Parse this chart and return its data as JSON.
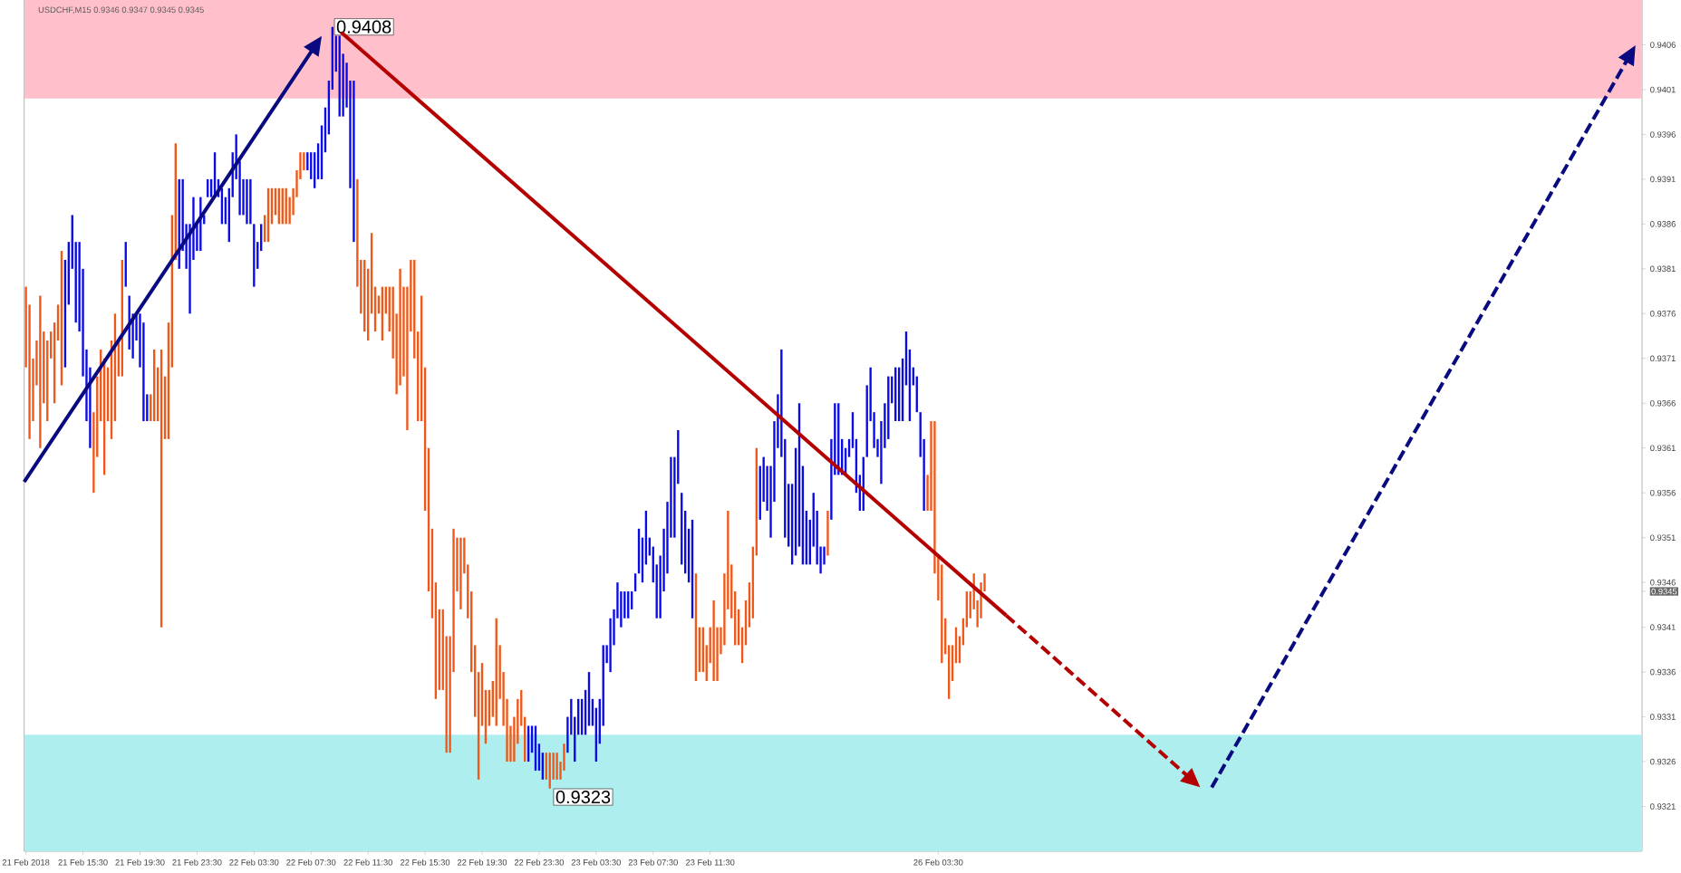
{
  "chart_data": {
    "type": "bar",
    "base": [
      0.937,
      0.9362,
      0.9364,
      0.9368,
      0.9361,
      0.9366,
      0.9364,
      0.9371,
      0.9366,
      0.9373,
      0.9368,
      0.937,
      0.9377,
      0.9381,
      0.9375,
      0.9374,
      0.9369,
      0.9364,
      0.9361,
      0.9356,
      0.936,
      0.9364,
      0.9358,
      0.9364,
      0.9362,
      0.9364,
      0.9369,
      0.9369,
      0.9379,
      0.9372,
      0.9371,
      0.9373,
      0.937,
      0.9364,
      0.9364,
      0.9364,
      0.9364,
      0.9364,
      0.9341,
      0.9362,
      0.9362,
      0.937,
      0.9382,
      0.9381,
      0.9383,
      0.9381,
      0.9376,
      0.9382,
      0.9383,
      0.9383,
      0.9386,
      0.9389,
      0.9389,
      0.9389,
      0.9389,
      0.9386,
      0.9386,
      0.9384,
      0.9389,
      0.9391,
      0.9387,
      0.9387,
      0.9386,
      0.9386,
      0.9379,
      0.9381,
      0.9383,
      0.9384,
      0.9384,
      0.9386,
      0.9387,
      0.9386,
      0.9386,
      0.9386,
      0.9386,
      0.9387,
      0.9389,
      0.9391,
      0.9392,
      0.9392,
      0.9391,
      0.939,
      0.9391,
      0.9391,
      0.9394,
      0.9396,
      0.9401,
      0.9403,
      0.9398,
      0.9398,
      0.9399,
      0.939,
      0.9384,
      0.9379,
      0.9376,
      0.9374,
      0.9373,
      0.9376,
      0.9374,
      0.9376,
      0.9373,
      0.9376,
      0.9374,
      0.9371,
      0.9367,
      0.9368,
      0.9369,
      0.9363,
      0.9374,
      0.9371,
      0.9364,
      0.9364,
      0.9354,
      0.9345,
      0.9342,
      0.9333,
      0.9334,
      0.9334,
      0.9327,
      0.9327,
      0.9336,
      0.9345,
      0.9343,
      0.9347,
      0.9342,
      0.9336,
      0.9331,
      0.9324,
      0.933,
      0.9328,
      0.933,
      0.9331,
      0.933,
      0.9333,
      0.933,
      0.9326,
      0.9326,
      0.9326,
      0.9328,
      0.933,
      0.9326,
      0.9326,
      0.9327,
      0.9325,
      0.9325,
      0.9324,
      0.9324,
      0.9323,
      0.9324,
      0.9324,
      0.9324,
      0.9325,
      0.9327,
      0.9329,
      0.9326,
      0.9329,
      0.9329,
      0.9329,
      0.933,
      0.933,
      0.9326,
      0.9328,
      0.933,
      0.9337,
      0.9336,
      0.9339,
      0.9342,
      0.9341,
      0.9342,
      0.9342,
      0.9343,
      0.9345,
      0.9347,
      0.9346,
      0.9348,
      0.9349,
      0.9346,
      0.9342,
      0.9342,
      0.9345,
      0.9347,
      0.9351,
      0.9351,
      0.9357,
      0.9348,
      0.9347,
      0.9346,
      0.9342,
      0.9335,
      0.9336,
      0.9336,
      0.9335,
      0.9337,
      0.9335,
      0.9335,
      0.9338,
      0.9339,
      0.9343,
      0.9342,
      0.9339,
      0.9339,
      0.9337,
      0.9339,
      0.9341,
      0.9342,
      0.9349,
      0.9353,
      0.9355,
      0.9354,
      0.9351,
      0.9355,
      0.9361,
      0.936,
      0.9351,
      0.935,
      0.9348,
      0.9349,
      0.935,
      0.9348,
      0.9348,
      0.9348,
      0.935,
      0.9348,
      0.9347,
      0.9348,
      0.9349,
      0.9353,
      0.9358,
      0.9358,
      0.9358,
      0.9358,
      0.936,
      0.9361,
      0.9356,
      0.9354,
      0.9354,
      0.936,
      0.9364,
      0.9361,
      0.936,
      0.9357,
      0.9361,
      0.9362,
      0.9366,
      0.9364,
      0.9364,
      0.9364,
      0.9368,
      0.9364,
      0.9368,
      0.9365,
      0.936,
      0.9354,
      0.9354,
      0.9354,
      0.9347,
      0.9344,
      0.9337,
      0.9338,
      0.9333,
      0.9335,
      0.9337,
      0.9337,
      0.9339,
      0.9341,
      0.9342,
      0.9343,
      0.9341,
      0.9342,
      0.9345,
      null,
      null,
      null,
      null,
      null,
      null,
      null,
      null,
      null,
      null,
      null,
      null,
      null,
      null,
      null,
      null,
      null,
      null,
      null,
      null,
      null,
      null,
      null,
      null,
      null,
      null,
      null,
      null,
      null,
      null,
      null,
      null,
      null,
      null,
      null,
      null,
      null,
      null,
      null,
      null,
      null,
      null,
      null,
      null,
      null,
      null,
      null,
      null,
      null,
      null,
      null,
      null,
      null,
      null,
      null,
      null,
      null,
      null,
      null,
      null,
      null,
      null,
      null,
      null,
      null,
      null,
      null,
      null,
      null,
      null,
      null,
      null,
      null,
      null,
      null,
      null,
      null,
      null,
      null,
      null,
      null,
      null,
      null,
      null,
      null,
      null,
      null,
      null,
      null,
      null,
      null,
      null,
      null,
      null,
      null,
      null,
      null,
      null,
      null,
      null,
      null,
      null,
      null,
      null,
      null,
      null,
      null,
      null,
      null,
      null,
      null,
      null,
      null,
      null,
      null,
      null,
      null,
      null,
      null,
      null,
      null,
      null,
      null,
      null,
      null,
      null,
      null,
      null,
      null,
      null,
      null,
      null,
      null,
      null,
      null,
      null,
      null,
      null,
      null,
      null,
      null,
      null,
      null,
      null,
      null,
      null,
      null,
      null,
      null,
      null,
      null,
      null,
      null,
      null,
      null,
      null,
      null,
      null,
      null,
      null,
      null,
      null,
      null,
      null,
      null,
      null,
      null,
      null,
      null,
      null,
      null,
      null,
      null,
      null,
      null,
      null,
      null,
      null,
      null,
      null,
      null,
      null,
      null,
      null
    ],
    "values": [
      0.0009,
      0.0015,
      0.0007,
      0.0005,
      0.0017,
      0.0008,
      0.0009,
      0.0003,
      0.0009,
      0.0004,
      0.0015,
      0.0012,
      0.0007,
      0.0006,
      0.0009,
      0.001,
      0.0012,
      0.0008,
      0.0009,
      0.0009,
      0.0009,
      0.0008,
      0.0013,
      0.0006,
      0.0011,
      0.0012,
      0.0004,
      0.0013,
      0.0005,
      0.0006,
      0.0005,
      0.0003,
      0.0006,
      0.0011,
      0.0003,
      0.0003,
      0.0008,
      0.0006,
      0.0031,
      0.0007,
      0.0013,
      0.0017,
      0.0013,
      0.001,
      0.0008,
      0.0005,
      0.001,
      0.0007,
      0.0003,
      0.0006,
      0.0001,
      0.0002,
      0.0002,
      0.0005,
      0.0002,
      0.0004,
      0.0003,
      0.0006,
      0.0005,
      0.0005,
      0.0006,
      0.0004,
      0.0005,
      0.0005,
      0.0007,
      0.0003,
      0.0003,
      0.0003,
      0.0006,
      0.0004,
      0.0003,
      0.0004,
      0.0004,
      0.0004,
      0.0003,
      0.0003,
      0.0003,
      0.0003,
      0.0002,
      0.0002,
      0.0003,
      0.0004,
      0.0004,
      0.0006,
      0.0005,
      0.0006,
      0.0007,
      0.0004,
      0.0009,
      0.0007,
      0.0005,
      0.0012,
      0.0018,
      0.0012,
      0.0006,
      0.0008,
      0.0008,
      0.0009,
      0.0005,
      0.0002,
      0.0006,
      0.0003,
      0.0005,
      0.0008,
      0.0009,
      0.0013,
      0.001,
      0.0016,
      0.0008,
      0.0011,
      0.001,
      0.0014,
      0.0016,
      0.0016,
      0.001,
      0.0013,
      0.0009,
      0.0009,
      0.0013,
      0.0013,
      0.0016,
      0.0006,
      0.0008,
      0.0004,
      0.0006,
      0.0009,
      0.0008,
      0.0012,
      0.0007,
      0.0006,
      0.0004,
      0.0004,
      0.0012,
      0.0006,
      0.0006,
      0.0007,
      0.0004,
      0.0005,
      0.0005,
      0.0004,
      0.0005,
      0.0004,
      0.0003,
      0.0005,
      0.0003,
      0.0003,
      0.0003,
      0.0004,
      0.0003,
      0.0003,
      0.0002,
      0.0003,
      0.0004,
      0.0004,
      0.0005,
      0.0004,
      0.0004,
      0.0005,
      0.0006,
      0.0003,
      0.0006,
      0.0005,
      0.0009,
      0.0002,
      0.0006,
      0.0004,
      0.0004,
      0.0004,
      0.0003,
      0.0003,
      0.0002,
      0.0002,
      0.0005,
      0.0005,
      0.0006,
      0.0002,
      0.0004,
      0.0006,
      0.0007,
      0.0007,
      0.0008,
      0.0009,
      0.0009,
      0.0006,
      0.0008,
      0.0007,
      0.0006,
      0.0011,
      0.0012,
      0.0005,
      0.0005,
      0.0004,
      0.0004,
      0.0009,
      0.0006,
      0.0003,
      0.0008,
      0.0011,
      0.0006,
      0.0006,
      0.0004,
      0.0004,
      0.0005,
      0.0005,
      0.0008,
      0.0012,
      0.0006,
      0.0005,
      0.0005,
      0.0008,
      0.0009,
      0.0006,
      0.0012,
      0.0011,
      0.0007,
      0.0009,
      0.0012,
      0.0016,
      0.0011,
      0.0006,
      0.0005,
      0.0006,
      0.0006,
      0.0003,
      0.0002,
      0.0005,
      0.0009,
      0.0008,
      0.0008,
      0.0004,
      0.0003,
      0.0002,
      0.0004,
      0.0006,
      0.0004,
      0.0006,
      0.0008,
      0.0006,
      0.0004,
      0.0002,
      0.0007,
      0.0005,
      0.0007,
      0.0003,
      0.0006,
      0.0006,
      0.0007,
      0.0006,
      0.0008,
      0.0002,
      0.0004,
      0.0005,
      0.0008,
      0.0004,
      0.001,
      0.0017,
      0.0005,
      0.0011,
      0.0004,
      0.0006,
      0.0004,
      0.0004,
      0.0003,
      0.0003,
      0.0004,
      0.0003,
      0.0004,
      0.0003,
      0.0004,
      0.0002,
      null,
      null,
      null,
      null,
      null,
      null,
      null,
      null,
      null,
      null,
      null,
      null,
      null,
      null,
      null,
      null,
      null,
      null,
      null,
      null,
      null,
      null,
      null,
      null,
      null,
      null,
      null,
      null,
      null,
      null,
      null,
      null,
      null,
      null,
      null,
      null,
      null,
      null,
      null,
      null,
      null,
      null,
      null,
      null,
      null,
      null,
      null,
      null,
      null,
      null,
      null,
      null,
      null,
      null,
      null,
      null,
      null,
      null,
      null,
      null,
      null,
      null,
      null,
      null,
      null,
      null,
      null,
      null,
      null,
      null,
      null,
      null,
      null,
      null,
      null,
      null,
      null,
      null,
      null,
      null,
      null,
      null,
      null,
      null,
      null,
      null,
      null,
      null,
      null,
      null,
      null,
      null,
      null,
      null,
      null,
      null,
      null,
      null,
      null,
      null,
      null,
      null,
      null,
      null,
      null,
      null,
      null,
      null,
      null,
      null,
      null,
      null,
      null,
      null,
      null,
      null,
      null,
      null,
      null,
      null,
      null,
      null,
      null,
      null,
      null,
      null,
      null,
      null,
      null,
      null,
      null,
      null,
      null,
      null,
      null,
      null,
      null,
      null,
      null,
      null,
      null,
      null,
      null,
      null,
      null,
      null,
      null,
      null,
      null,
      null,
      null,
      null,
      null,
      null,
      null,
      null,
      null,
      null,
      null,
      null,
      null,
      null,
      null,
      null,
      null,
      null,
      null,
      null,
      null,
      null,
      null,
      null,
      null,
      null,
      null,
      null,
      null,
      null,
      null,
      null,
      null,
      null,
      null,
      null
    ],
    "title": "USDCHF,M15  0.9346 0.9347 0.9345 0.9345",
    "categories": [
      "21 Feb 2018",
      null,
      null,
      null,
      null,
      null,
      null,
      null,
      null,
      null,
      null,
      null,
      null,
      null,
      null,
      null,
      "21 Feb 15:30",
      null,
      null,
      null,
      null,
      null,
      null,
      null,
      null,
      null,
      null,
      null,
      null,
      null,
      null,
      null,
      "21 Feb 19:30",
      null,
      null,
      null,
      null,
      null,
      null,
      null,
      null,
      null,
      null,
      null,
      null,
      null,
      null,
      null,
      "21 Feb 23:30",
      null,
      null,
      null,
      null,
      null,
      null,
      null,
      null,
      null,
      null,
      null,
      null,
      null,
      null,
      null,
      "22 Feb 03:30",
      null,
      null,
      null,
      null,
      null,
      null,
      null,
      null,
      null,
      null,
      null,
      null,
      null,
      null,
      null,
      "22 Feb 07:30",
      null,
      null,
      null,
      null,
      null,
      null,
      null,
      null,
      null,
      null,
      null,
      null,
      null,
      null,
      null,
      "22 Feb 11:30",
      null,
      null,
      null,
      null,
      null,
      null,
      null,
      null,
      null,
      null,
      null,
      null,
      null,
      null,
      null,
      "22 Feb 15:30",
      null,
      null,
      null,
      null,
      null,
      null,
      null,
      null,
      null,
      null,
      null,
      null,
      null,
      null,
      null,
      "22 Feb 19:30",
      null,
      null,
      null,
      null,
      null,
      null,
      null,
      null,
      null,
      null,
      null,
      null,
      null,
      null,
      null,
      "22 Feb 23:30",
      null,
      null,
      null,
      null,
      null,
      null,
      null,
      null,
      null,
      null,
      null,
      null,
      null,
      null,
      null,
      "23 Feb 03:30",
      null,
      null,
      null,
      null,
      null,
      null,
      null,
      null,
      null,
      null,
      null,
      null,
      null,
      null,
      null,
      "23 Feb 07:30",
      null,
      null,
      null,
      null,
      null,
      null,
      null,
      null,
      null,
      null,
      null,
      null,
      null,
      null,
      null,
      "23 Feb 11:30",
      null,
      null,
      null,
      null,
      null,
      null,
      null,
      null,
      null,
      null,
      null,
      null,
      null,
      null,
      null,
      null,
      null,
      null,
      null,
      null,
      null,
      null,
      null,
      null,
      null,
      null,
      null,
      null,
      null,
      null,
      null,
      null,
      null,
      null,
      null,
      null,
      null,
      null,
      null,
      null,
      null,
      null,
      null,
      null,
      null,
      null,
      null,
      null,
      null,
      null,
      null,
      null,
      null,
      null,
      null,
      null,
      null,
      null,
      null,
      null,
      null,
      null,
      null,
      "26 Feb 03:30",
      null,
      null,
      null,
      null,
      null,
      null,
      null,
      null,
      null,
      null,
      null,
      null,
      null,
      null,
      null,
      null,
      null,
      null,
      null,
      null,
      null,
      null,
      null,
      null,
      null,
      null,
      null,
      null,
      null,
      null,
      null,
      null,
      null,
      null,
      null,
      null,
      null,
      null,
      null,
      null,
      null,
      null,
      null,
      null,
      null,
      null,
      null,
      null,
      null,
      null,
      null,
      null,
      null,
      null,
      null,
      null,
      null,
      null,
      null,
      null,
      null,
      null,
      null,
      null,
      null,
      null,
      null,
      null,
      null,
      null,
      null,
      null,
      null,
      null,
      null,
      null,
      null,
      null,
      null,
      null,
      null,
      null,
      null,
      null,
      null,
      null,
      null,
      null,
      null,
      null,
      null,
      null,
      null,
      null,
      null,
      null,
      null,
      null,
      null,
      null,
      null,
      null,
      null,
      null,
      null,
      null,
      null,
      null,
      null,
      null,
      null,
      null,
      null,
      null,
      null,
      null,
      null,
      null,
      null,
      null,
      null,
      null,
      null,
      null,
      null,
      null,
      null,
      null,
      null,
      null,
      null,
      null,
      null,
      null,
      null,
      null,
      null,
      null,
      null,
      null,
      null,
      null,
      null,
      null,
      null,
      null,
      null,
      null,
      null,
      null,
      null,
      null,
      null,
      null,
      null,
      null,
      null,
      null,
      null,
      null,
      null,
      null,
      null,
      null,
      null,
      null,
      null,
      null,
      null,
      null,
      null,
      null,
      null,
      null,
      null,
      null,
      null,
      null,
      null,
      null,
      null,
      null,
      null,
      null,
      null,
      null,
      null,
      null,
      null,
      null,
      null,
      null,
      null,
      null,
      null,
      null,
      null
    ],
    "colors": [
      "#f0581a",
      "#f0581a",
      "#f0581a",
      "#f0581a",
      "#f0581a",
      "#f0581a",
      "#f0581a",
      "#f0581a",
      "#f0581a",
      "#f0581a",
      "#f0581a",
      "#0a0ae6",
      "#0a0ae6",
      "#0a0ae6",
      "#0a0ae6",
      "#0a0ae6",
      "#0a0ae6",
      "#0a0ae6",
      "#0a0ae6",
      "#f0581a",
      "#f0581a",
      "#f0581a",
      "#f0581a",
      "#f0581a",
      "#f0581a",
      "#f0581a",
      "#f0581a",
      "#f0581a",
      "#0a0ae6",
      "#0a0ae6",
      "#0a0ae6",
      "#0a0ae6",
      "#0a0ae6",
      "#0a0ae6",
      "#0a0ae6",
      "#f0581a",
      "#f0581a",
      "#f0581a",
      "#f0581a",
      "#f0581a",
      "#f0581a",
      "#f0581a",
      "#f0581a",
      "#0a0ae6",
      "#0a0ae6",
      "#0a0ae6",
      "#0a0ae6",
      "#0a0ae6",
      "#0a0ae6",
      "#0a0ae6",
      "#0a0ae6",
      "#0a0ae6",
      "#0a0ae6",
      "#0a0ae6",
      "#0a0ae6",
      "#0a0ae6",
      "#0a0ae6",
      "#0a0ae6",
      "#0a0ae6",
      "#0a0ae6",
      "#0a0ae6",
      "#0a0ae6",
      "#0a0ae6",
      "#0a0ae6",
      "#0a0ae6",
      "#0a0ae6",
      "#0a0ae6",
      "#f0581a",
      "#f0581a",
      "#f0581a",
      "#f0581a",
      "#f0581a",
      "#f0581a",
      "#f0581a",
      "#f0581a",
      "#f0581a",
      "#f0581a",
      "#f0581a",
      "#f0581a",
      "#0a0ae6",
      "#0a0ae6",
      "#0a0ae6",
      "#0a0ae6",
      "#0a0ae6",
      "#0a0ae6",
      "#0a0ae6",
      "#0a0ae6",
      "#0a0ae6",
      "#0a0ae6",
      "#0a0ae6",
      "#0a0ae6",
      "#0a0ae6",
      "#0a0ae6",
      "#f0581a",
      "#f0581a",
      "#f0581a",
      "#f0581a",
      "#f0581a",
      "#f0581a",
      "#f0581a",
      "#f0581a",
      "#f0581a",
      "#f0581a",
      "#f0581a",
      "#f0581a",
      "#f0581a",
      "#f0581a",
      "#f0581a",
      "#f0581a",
      "#f0581a",
      "#f0581a",
      "#f0581a",
      "#f0581a",
      "#f0581a",
      "#f0581a",
      "#f0581a",
      "#f0581a",
      "#f0581a",
      "#f0581a",
      "#f0581a",
      "#f0581a",
      "#f0581a",
      "#f0581a",
      "#f0581a",
      "#f0581a",
      "#f0581a",
      "#f0581a",
      "#f0581a",
      "#f0581a",
      "#f0581a",
      "#f0581a",
      "#f0581a",
      "#f0581a",
      "#f0581a",
      "#f0581a",
      "#f0581a",
      "#f0581a",
      "#f0581a",
      "#f0581a",
      "#f0581a",
      "#f0581a",
      "#0a0ae6",
      "#0a0ae6",
      "#0a0ae6",
      "#0a0ae6",
      "#0a0ae6",
      "#f0581a",
      "#f0581a",
      "#f0581a",
      "#f0581a",
      "#f0581a",
      "#f0581a",
      "#0a0ae6",
      "#0a0ae6",
      "#0a0ae6",
      "#0a0ae6",
      "#0a0ae6",
      "#0a0ae6",
      "#0a0ae6",
      "#0a0ae6",
      "#0a0ae6",
      "#0a0ae6",
      "#0a0ae6",
      "#0a0ae6",
      "#0a0ae6",
      "#0a0ae6",
      "#0a0ae6",
      "#0a0ae6",
      "#0a0ae6",
      "#0a0ae6",
      "#0a0ae6",
      "#0a0ae6",
      "#0a0ae6",
      "#0a0ae6",
      "#0a0ae6",
      "#0a0ae6",
      "#0a0ae6",
      "#0a0ae6",
      "#0a0ae6",
      "#0a0ae6",
      "#0a0ae6",
      "#0a0ae6",
      "#0a0ae6",
      "#0a0ae6",
      "#0a0ae6",
      "#0a0ae6",
      "#0a0ae6",
      "#0a0ae6",
      "#f0581a",
      "#f0581a",
      "#f0581a",
      "#f0581a",
      "#f0581a",
      "#f0581a",
      "#f0581a",
      "#f0581a",
      "#f0581a",
      "#f0581a",
      "#f0581a",
      "#f0581a",
      "#f0581a",
      "#f0581a",
      "#f0581a",
      "#f0581a",
      "#f0581a",
      "#f0581a",
      "#0a0ae6",
      "#0a0ae6",
      "#0a0ae6",
      "#0a0ae6",
      "#0a0ae6",
      "#0a0ae6",
      "#0a0ae6",
      "#0a0ae6",
      "#0a0ae6",
      "#0a0ae6",
      "#0a0ae6",
      "#0a0ae6",
      "#0a0ae6",
      "#0a0ae6",
      "#0a0ae6",
      "#0a0ae6",
      "#0a0ae6",
      "#0a0ae6",
      "#0a0ae6",
      "#f0581a",
      "#0a0ae6",
      "#0a0ae6",
      "#0a0ae6",
      "#0a0ae6",
      "#0a0ae6",
      "#0a0ae6",
      "#0a0ae6",
      "#0a0ae6",
      "#0a0ae6",
      "#0a0ae6",
      "#0a0ae6",
      "#0a0ae6",
      "#0a0ae6",
      "#0a0ae6",
      "#0a0ae6",
      "#0a0ae6",
      "#0a0ae6",
      "#0a0ae6",
      "#0a0ae6",
      "#0a0ae6",
      "#0a0ae6",
      "#0a0ae6",
      "#0a0ae6",
      "#0a0ae6",
      "#0a0ae6",
      "#0a0ae6",
      "#0a0ae6",
      "#f0581a",
      "#f0581a",
      "#f0581a",
      "#f0581a",
      "#f0581a",
      "#f0581a",
      "#f0581a",
      "#f0581a",
      "#f0581a",
      "#f0581a",
      "#f0581a",
      "#f0581a",
      "#f0581a",
      "#f0581a",
      "#f0581a",
      "#f0581a",
      "#f0581a",
      null,
      null,
      null,
      null,
      null,
      null,
      null,
      null,
      null,
      null,
      null,
      null,
      null,
      null,
      null,
      null,
      null,
      null,
      null,
      null,
      null,
      null,
      null,
      null,
      null,
      null,
      null,
      null,
      null,
      null,
      null,
      null,
      null,
      null,
      null,
      null,
      null,
      null,
      null,
      null,
      null,
      null,
      null,
      null,
      null,
      null,
      null,
      null,
      null,
      null,
      null,
      null,
      null,
      null,
      null,
      null,
      null,
      null,
      null,
      null,
      null,
      null,
      null,
      null,
      null,
      null,
      null,
      null,
      null,
      null,
      null,
      null,
      null,
      null,
      null,
      null,
      null,
      null,
      null,
      null,
      null,
      null,
      null,
      null,
      null,
      null,
      null,
      null,
      null,
      null,
      null,
      null,
      null,
      null,
      null,
      null,
      null,
      null,
      null,
      null,
      null,
      null,
      null,
      null,
      null,
      null,
      null,
      null,
      null,
      null,
      null,
      null,
      null,
      null,
      null,
      null,
      null,
      null,
      null,
      null,
      null,
      null,
      null,
      null,
      null,
      null,
      null,
      null,
      null,
      null,
      null,
      null,
      null,
      null,
      null,
      null,
      null,
      null,
      null,
      null,
      null,
      null,
      null,
      null,
      null,
      null,
      null,
      null,
      null,
      null,
      null,
      null,
      null,
      null,
      null,
      null,
      null,
      null,
      null,
      null,
      null,
      null,
      null,
      null,
      null,
      null,
      null,
      null,
      null,
      null,
      null,
      null,
      null,
      null,
      null,
      null,
      null,
      null,
      null,
      null,
      null,
      null,
      null,
      null
    ],
    "ylim": [
      0.9316,
      0.9411
    ],
    "yticks": [
      0.9321,
      0.9326,
      0.9331,
      0.9336,
      0.9341,
      {
        "value": 0.9345,
        "label": "0.9345"
      },
      0.9346,
      0.9351,
      0.9356,
      0.9361,
      0.9366,
      0.9371,
      0.9376,
      0.9381,
      0.9386,
      0.9391,
      0.9396,
      0.9401,
      0.9406
    ],
    "bands": [
      {
        "axis": "y",
        "from": 0.94,
        "to": 0.9411,
        "color": "#ffc0cb"
      },
      {
        "axis": "y",
        "from": 0.9316,
        "to": 0.9329,
        "color": "#afeeee"
      }
    ],
    "annotations": [
      "0.9408",
      "0.9323"
    ]
  }
}
